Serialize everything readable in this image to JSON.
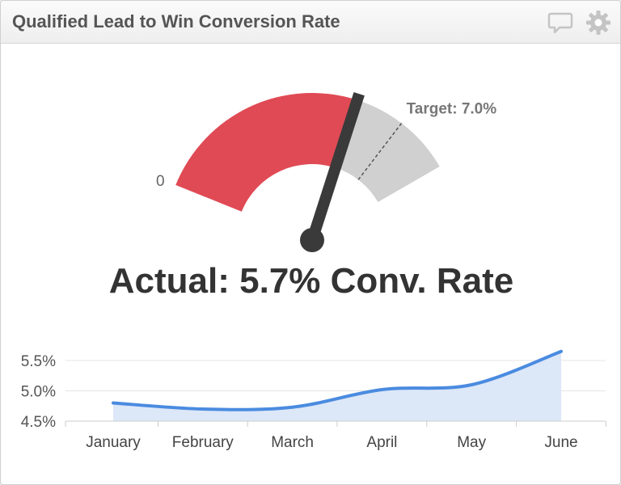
{
  "widget": {
    "title": "Qualified Lead to Win Conversion Rate",
    "icons": {
      "comment": "comment-icon",
      "settings": "gear-icon"
    }
  },
  "gauge": {
    "min_label": "0",
    "target_label": "Target: 7.0%",
    "actual_label": "Actual: 5.7% Conv. Rate",
    "actual_value": 5.7,
    "target_value": 7.0,
    "max_value": 8.5,
    "colors": {
      "actual": "#e04a55",
      "remaining": "#d0d0d0",
      "needle": "#3a3a3a"
    }
  },
  "chart_data": {
    "type": "area",
    "categories": [
      "January",
      "February",
      "March",
      "April",
      "May",
      "June"
    ],
    "series": [
      {
        "values": [
          4.8,
          4.7,
          4.73,
          5.02,
          5.1,
          5.65
        ]
      }
    ],
    "ylabel": "",
    "xlabel": "",
    "yticks": [
      "5.5%",
      "5.0%",
      "4.5%"
    ],
    "ylim": [
      4.5,
      5.5
    ],
    "grid": true,
    "line_color": "#4a8be0",
    "fill_color": "#dce7f8"
  }
}
